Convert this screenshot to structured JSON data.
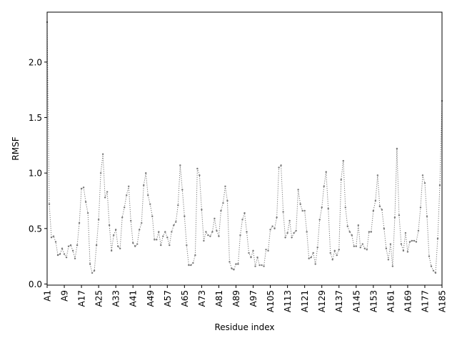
{
  "chart_data": {
    "type": "line",
    "title": "",
    "xlabel": "Residue index",
    "ylabel": "RMSF",
    "ylim": [
      -0.01,
      2.45
    ],
    "yticks": [
      0.0,
      0.5,
      1.0,
      1.5,
      2.0
    ],
    "ytick_labels": [
      "0.0",
      "0.5",
      "1.0",
      "1.5",
      "2.0"
    ],
    "xtick_labels": [
      "A1",
      "A9",
      "A17",
      "A25",
      "A33",
      "A41",
      "A49",
      "A57",
      "A65",
      "A73",
      "A81",
      "A89",
      "A97",
      "A105",
      "A113",
      "A121",
      "A129",
      "A137",
      "A145",
      "A153",
      "A161",
      "A169",
      "A177",
      "A185"
    ],
    "grid": false,
    "line_style": "dotted",
    "marker": "small-dot",
    "colors": {
      "series": "#777777",
      "axes": "#000000",
      "background": "#ffffff"
    },
    "series": [
      {
        "values": [
          2.36,
          0.72,
          0.42,
          0.43,
          0.38,
          0.26,
          0.27,
          0.32,
          0.27,
          0.24,
          0.34,
          0.35,
          0.3,
          0.23,
          0.35,
          0.55,
          0.86,
          0.87,
          0.74,
          0.64,
          0.18,
          0.1,
          0.12,
          0.35,
          0.58,
          1.0,
          1.17,
          0.78,
          0.83,
          0.53,
          0.3,
          0.44,
          0.49,
          0.34,
          0.32,
          0.6,
          0.69,
          0.8,
          0.88,
          0.57,
          0.37,
          0.34,
          0.36,
          0.49,
          0.55,
          0.89,
          1.0,
          0.8,
          0.72,
          0.61,
          0.4,
          0.4,
          0.47,
          0.35,
          0.43,
          0.47,
          0.42,
          0.35,
          0.47,
          0.53,
          0.56,
          0.71,
          1.07,
          0.85,
          0.61,
          0.35,
          0.17,
          0.17,
          0.19,
          0.26,
          1.04,
          0.98,
          0.67,
          0.39,
          0.47,
          0.44,
          0.43,
          0.47,
          0.59,
          0.48,
          0.43,
          0.66,
          0.73,
          0.88,
          0.75,
          0.2,
          0.14,
          0.13,
          0.18,
          0.18,
          0.44,
          0.58,
          0.64,
          0.47,
          0.28,
          0.24,
          0.3,
          0.16,
          0.24,
          0.17,
          0.17,
          0.16,
          0.31,
          0.3,
          0.49,
          0.52,
          0.5,
          0.6,
          1.05,
          1.07,
          0.65,
          0.42,
          0.46,
          0.57,
          0.42,
          0.46,
          0.48,
          0.85,
          0.72,
          0.66,
          0.66,
          0.47,
          0.23,
          0.24,
          0.28,
          0.18,
          0.33,
          0.58,
          0.69,
          0.88,
          1.01,
          0.68,
          0.28,
          0.22,
          0.3,
          0.26,
          0.31,
          0.94,
          1.11,
          0.69,
          0.52,
          0.47,
          0.44,
          0.34,
          0.34,
          0.53,
          0.33,
          0.36,
          0.32,
          0.31,
          0.47,
          0.47,
          0.66,
          0.75,
          0.98,
          0.7,
          0.67,
          0.5,
          0.32,
          0.22,
          0.36,
          0.16,
          0.6,
          1.22,
          0.62,
          0.36,
          0.3,
          0.46,
          0.29,
          0.38,
          0.39,
          0.39,
          0.38,
          0.48,
          0.69,
          0.98,
          0.91,
          0.61,
          0.25,
          0.16,
          0.12,
          0.1,
          0.41,
          0.89,
          1.65
        ]
      }
    ]
  }
}
